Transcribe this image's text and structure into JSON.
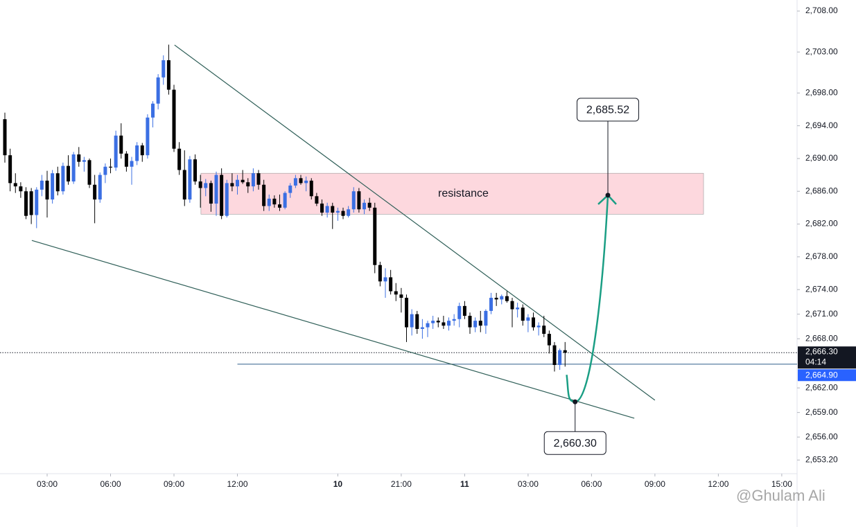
{
  "chart_data": {
    "type": "candlestick",
    "up_color": "#3b6fe3",
    "down_color": "#000000",
    "xlim": [
      -0.92,
      149.9
    ],
    "ylim": [
      2651.53,
      2709.35
    ],
    "grid": false,
    "xticks": [
      {
        "value": 8,
        "label": "03:00"
      },
      {
        "value": 20,
        "label": "06:00"
      },
      {
        "value": 32,
        "label": "09:00"
      },
      {
        "value": 44,
        "label": "12:00"
      },
      {
        "value": 63,
        "label": "10"
      },
      {
        "value": 75,
        "label": "21:00"
      },
      {
        "value": 87,
        "label": "11"
      },
      {
        "value": 99,
        "label": "03:00"
      },
      {
        "value": 111,
        "label": "06:00"
      },
      {
        "value": 123,
        "label": "09:00"
      },
      {
        "value": 135,
        "label": "12:00"
      },
      {
        "value": 147,
        "label": "15:00"
      }
    ],
    "yticks": [
      {
        "value": 2708,
        "label": "2,708.00"
      },
      {
        "value": 2703,
        "label": "2,703.00"
      },
      {
        "value": 2698,
        "label": "2,698.00"
      },
      {
        "value": 2694,
        "label": "2,694.00"
      },
      {
        "value": 2690,
        "label": "2,690.00"
      },
      {
        "value": 2686,
        "label": "2,686.00"
      },
      {
        "value": 2682,
        "label": "2,682.00"
      },
      {
        "value": 2678,
        "label": "2,678.00"
      },
      {
        "value": 2674,
        "label": "2,674.00"
      },
      {
        "value": 2671,
        "label": "2,671.00"
      },
      {
        "value": 2668,
        "label": "2,668.00"
      },
      {
        "value": 2662,
        "label": "2,662.00"
      },
      {
        "value": 2659,
        "label": "2,659.00"
      },
      {
        "value": 2656,
        "label": "2,656.00"
      },
      {
        "value": 2653.2,
        "label": "2,653.20"
      }
    ],
    "ohlc": [
      [
        2694.8,
        2695.6,
        2689.5,
        2690.4
      ],
      [
        2690.4,
        2691.2,
        2686.0,
        2687.0
      ],
      [
        2687.0,
        2688.2,
        2685.8,
        2686.6
      ],
      [
        2686.6,
        2687.1,
        2685.2,
        2686.0
      ],
      [
        2686.0,
        2686.5,
        2682.6,
        2683.0
      ],
      [
        2686.0,
        2686.4,
        2682.0,
        2683.1
      ],
      [
        2683.1,
        2686.5,
        2681.5,
        2686.2
      ],
      [
        2686.2,
        2688.0,
        2685.4,
        2687.3
      ],
      [
        2687.3,
        2688.5,
        2682.8,
        2685.0
      ],
      [
        2685.0,
        2688.6,
        2684.5,
        2688.2
      ],
      [
        2688.2,
        2689.0,
        2685.5,
        2686.0
      ],
      [
        2686.0,
        2689.5,
        2685.6,
        2689.1
      ],
      [
        2689.1,
        2690.4,
        2686.8,
        2687.2
      ],
      [
        2687.2,
        2690.8,
        2686.9,
        2690.5
      ],
      [
        2690.5,
        2691.4,
        2689.0,
        2689.6
      ],
      [
        2689.6,
        2690.2,
        2688.4,
        2689.8
      ],
      [
        2689.8,
        2690.0,
        2686.4,
        2686.8
      ],
      [
        2686.8,
        2688.0,
        2682.1,
        2685.0
      ],
      [
        2685.0,
        2688.3,
        2684.6,
        2688.0
      ],
      [
        2688.0,
        2689.4,
        2687.0,
        2689.0
      ],
      [
        2689.0,
        2690.0,
        2688.2,
        2688.9
      ],
      [
        2688.9,
        2693.4,
        2688.5,
        2692.8
      ],
      [
        2692.8,
        2694.3,
        2690.0,
        2690.6
      ],
      [
        2690.6,
        2690.9,
        2688.4,
        2689.0
      ],
      [
        2689.0,
        2690.2,
        2686.8,
        2689.7
      ],
      [
        2689.7,
        2692.0,
        2689.2,
        2691.6
      ],
      [
        2691.6,
        2691.9,
        2689.6,
        2690.4
      ],
      [
        2690.4,
        2695.4,
        2690.0,
        2695.0
      ],
      [
        2695.0,
        2697.0,
        2693.8,
        2696.7
      ],
      [
        2696.7,
        2700.3,
        2696.0,
        2699.9
      ],
      [
        2699.9,
        2702.6,
        2699.0,
        2702.0
      ],
      [
        2702.0,
        2703.9,
        2697.8,
        2698.4
      ],
      [
        2698.4,
        2699.0,
        2690.8,
        2691.2
      ],
      [
        2691.2,
        2692.0,
        2688.0,
        2688.6
      ],
      [
        2688.6,
        2691.0,
        2684.2,
        2685.0
      ],
      [
        2685.0,
        2690.3,
        2684.6,
        2689.9
      ],
      [
        2689.9,
        2690.5,
        2686.8,
        2687.2
      ],
      [
        2687.2,
        2688.0,
        2684.0,
        2686.4
      ],
      [
        2686.4,
        2687.5,
        2685.4,
        2687.0
      ],
      [
        2687.0,
        2687.3,
        2683.5,
        2684.5
      ],
      [
        2684.5,
        2688.4,
        2683.0,
        2688.0
      ],
      [
        2688.0,
        2688.8,
        2682.6,
        2683.0
      ],
      [
        2683.0,
        2687.4,
        2682.8,
        2687.0
      ],
      [
        2687.0,
        2688.2,
        2686.0,
        2686.6
      ],
      [
        2686.6,
        2688.0,
        2685.6,
        2687.4
      ],
      [
        2687.4,
        2688.6,
        2686.9,
        2687.1
      ],
      [
        2687.1,
        2687.6,
        2685.8,
        2686.6
      ],
      [
        2686.6,
        2688.8,
        2686.0,
        2688.2
      ],
      [
        2688.2,
        2688.6,
        2686.2,
        2686.8
      ],
      [
        2686.8,
        2687.4,
        2683.6,
        2684.2
      ],
      [
        2684.2,
        2685.6,
        2683.6,
        2685.1
      ],
      [
        2685.1,
        2685.5,
        2684.0,
        2684.4
      ],
      [
        2684.4,
        2685.6,
        2683.6,
        2684.0
      ],
      [
        2684.0,
        2686.0,
        2683.8,
        2685.8
      ],
      [
        2685.8,
        2687.0,
        2685.2,
        2686.7
      ],
      [
        2686.7,
        2688.0,
        2686.4,
        2687.6
      ],
      [
        2687.6,
        2688.0,
        2686.8,
        2687.0
      ],
      [
        2687.0,
        2687.8,
        2686.0,
        2687.3
      ],
      [
        2687.3,
        2687.6,
        2685.0,
        2685.4
      ],
      [
        2685.4,
        2685.8,
        2684.2,
        2684.5
      ],
      [
        2684.5,
        2685.0,
        2683.0,
        2683.4
      ],
      [
        2683.4,
        2684.6,
        2682.8,
        2684.2
      ],
      [
        2684.2,
        2684.6,
        2681.4,
        2683.4
      ],
      [
        2683.4,
        2684.0,
        2682.4,
        2683.6
      ],
      [
        2683.6,
        2684.0,
        2682.6,
        2683.0
      ],
      [
        2683.0,
        2684.2,
        2682.8,
        2683.8
      ],
      [
        2683.8,
        2686.5,
        2683.4,
        2686.0
      ],
      [
        2686.0,
        2686.4,
        2683.4,
        2683.8
      ],
      [
        2683.8,
        2685.0,
        2683.2,
        2684.6
      ],
      [
        2684.6,
        2685.2,
        2683.6,
        2684.0
      ],
      [
        2684.0,
        2684.6,
        2676.0,
        2677.0
      ],
      [
        2677.0,
        2677.4,
        2674.4,
        2675.0
      ],
      [
        2675.0,
        2676.6,
        2673.0,
        2675.5
      ],
      [
        2675.5,
        2676.4,
        2673.4,
        2673.8
      ],
      [
        2673.8,
        2674.8,
        2672.6,
        2673.4
      ],
      [
        2673.4,
        2674.2,
        2671.2,
        2673.0
      ],
      [
        2673.0,
        2673.4,
        2667.6,
        2669.4
      ],
      [
        2669.4,
        2671.6,
        2668.4,
        2671.0
      ],
      [
        2671.0,
        2671.4,
        2668.6,
        2669.2
      ],
      [
        2669.2,
        2670.4,
        2668.0,
        2669.4
      ],
      [
        2669.4,
        2670.2,
        2668.2,
        2669.9
      ],
      [
        2669.9,
        2670.8,
        2669.2,
        2670.2
      ],
      [
        2670.2,
        2670.6,
        2669.4,
        2670.0
      ],
      [
        2670.0,
        2670.8,
        2669.2,
        2669.6
      ],
      [
        2669.6,
        2670.6,
        2669.0,
        2670.2
      ],
      [
        2670.2,
        2671.0,
        2669.6,
        2670.4
      ],
      [
        2670.4,
        2672.4,
        2669.4,
        2672.0
      ],
      [
        2672.0,
        2672.6,
        2670.4,
        2670.8
      ],
      [
        2670.8,
        2671.2,
        2668.6,
        2669.4
      ],
      [
        2669.4,
        2670.6,
        2668.8,
        2670.2
      ],
      [
        2670.2,
        2671.4,
        2668.8,
        2669.6
      ],
      [
        2669.6,
        2671.6,
        2668.6,
        2671.4
      ],
      [
        2671.4,
        2673.6,
        2671.0,
        2673.0
      ],
      [
        2673.0,
        2673.6,
        2672.0,
        2672.8
      ],
      [
        2672.8,
        2673.4,
        2672.2,
        2673.2
      ],
      [
        2673.2,
        2673.8,
        2672.4,
        2672.6
      ],
      [
        2672.6,
        2673.0,
        2669.4,
        2671.6
      ],
      [
        2671.6,
        2672.4,
        2670.6,
        2671.8
      ],
      [
        2671.8,
        2672.2,
        2669.6,
        2670.2
      ],
      [
        2670.2,
        2671.0,
        2668.8,
        2670.6
      ],
      [
        2670.6,
        2671.2,
        2669.0,
        2669.4
      ],
      [
        2669.4,
        2670.0,
        2668.4,
        2669.6
      ],
      [
        2669.6,
        2670.8,
        2668.2,
        2668.6
      ],
      [
        2668.6,
        2669.0,
        2666.2,
        2667.2
      ],
      [
        2667.2,
        2667.6,
        2664.0,
        2664.8
      ],
      [
        2664.8,
        2666.8,
        2664.2,
        2666.6
      ],
      [
        2666.6,
        2667.6,
        2664.6,
        2666.3
      ]
    ],
    "trendline_color": "#2e5e57",
    "trendlines": [
      {
        "x": [
          32.1,
          123.0
        ],
        "y": [
          2703.86,
          2660.5
        ]
      },
      {
        "x": [
          5.1,
          119.1
        ],
        "y": [
          2680.0,
          2658.3
        ]
      }
    ],
    "resistance": {
      "label": "resistance",
      "x": [
        37.1,
        132.2
      ],
      "y": [
        2683.2,
        2688.2
      ],
      "color": "#fdd8de"
    },
    "support_line": {
      "value": 2664.9,
      "label": "2,664.90",
      "x_start": 44,
      "color": "#2e5e8a"
    },
    "last_price": {
      "value": 2666.3,
      "label": "2,666.30",
      "countdown": "04:14"
    },
    "projection": {
      "x": [
        106.3,
        107.9,
        114.1
      ],
      "y": [
        2663.6,
        2660.3,
        2685.52
      ],
      "color": "#1a9e84"
    },
    "callouts": [
      {
        "x": 114.1,
        "value": 2685.52,
        "label": "2,685.52",
        "position": "above"
      },
      {
        "x": 107.9,
        "value": 2660.3,
        "label": "2,660.30",
        "position": "below"
      }
    ],
    "watermark": "@Ghulam Ali"
  }
}
